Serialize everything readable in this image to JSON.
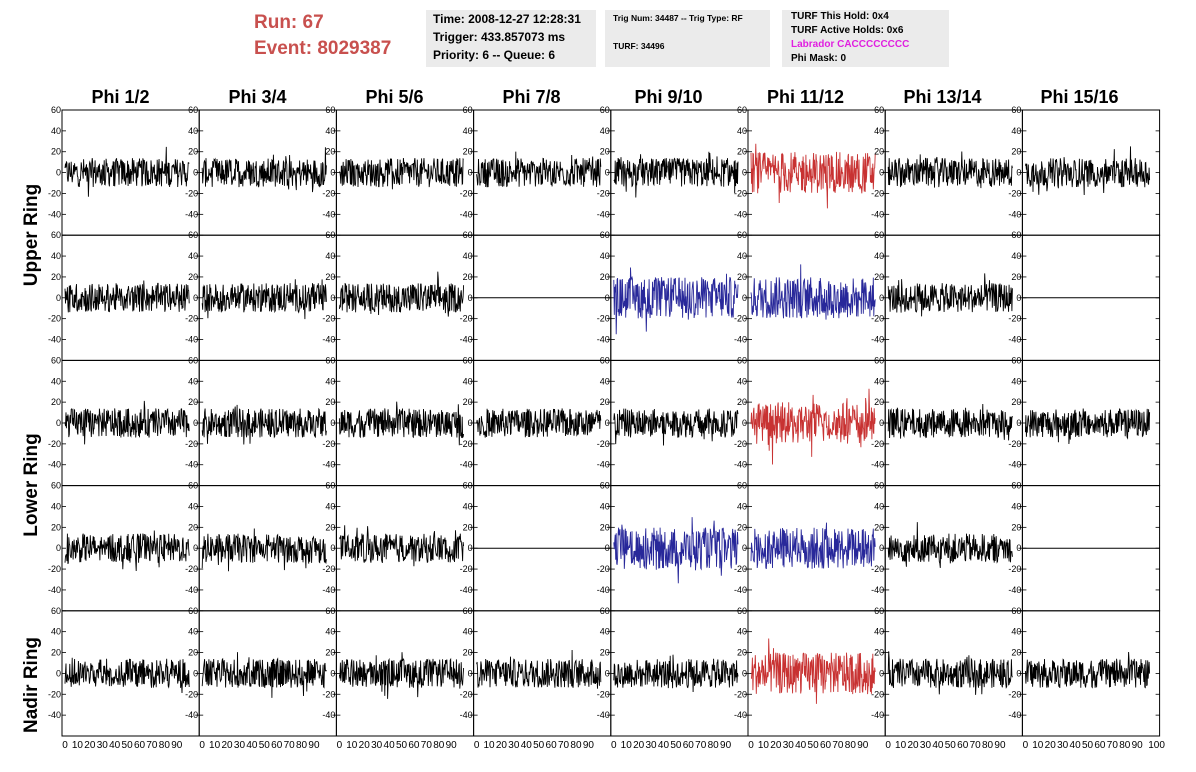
{
  "header": {
    "run": "Run:    67",
    "event": "Event: 8029387"
  },
  "info_time": {
    "time": "Time: 2008-12-27 12:28:31",
    "trigger": "Trigger: 433.857073 ms",
    "priority": "Priority: 6 -- Queue: 6"
  },
  "info_trig": {
    "trig": "Trig Num: 34487 -- Trig Type: RF",
    "turf": "TURF: 34496"
  },
  "info_turf": {
    "this_hold": "TURF This Hold: 0x4",
    "active_holds": "TURF Active Holds: 0x6",
    "labrador": "Labrador CACCCCCCCC",
    "phi_mask": "Phi Mask: 0"
  },
  "columns": [
    "Phi 1/2",
    "Phi 3/4",
    "Phi 5/6",
    "Phi 7/8",
    "Phi 9/10",
    "Phi 11/12",
    "Phi 13/14",
    "Phi 15/16"
  ],
  "rings": [
    "Upper Ring",
    "Lower Ring",
    "Nadir Ring"
  ],
  "colors": {
    "normal": "#000000",
    "hold": "#c83232",
    "active": "#28289a",
    "labrador": "#e020e0"
  },
  "chart_data": {
    "type": "line",
    "x_range": [
      0,
      100
    ],
    "y_range": [
      -60,
      60
    ],
    "y_ticks": [
      -40,
      -20,
      0,
      20,
      40,
      60
    ],
    "x_ticks": [
      0,
      10,
      20,
      30,
      40,
      50,
      60,
      70,
      80,
      90
    ],
    "x_end_label": "100",
    "rows": 5,
    "cols": 8,
    "panels": [
      [
        "normal",
        "normal",
        "normal",
        "normal",
        "normal",
        "hold",
        "normal",
        "normal"
      ],
      [
        "normal",
        "normal",
        "normal",
        "flat",
        "active",
        "active",
        "normal",
        "flat"
      ],
      [
        "normal",
        "normal",
        "normal",
        "normal",
        "normal",
        "hold",
        "normal",
        "normal"
      ],
      [
        "normal",
        "normal",
        "normal",
        "flat",
        "active",
        "active",
        "normal",
        "flat"
      ],
      [
        "normal",
        "normal",
        "normal",
        "normal",
        "normal",
        "hold",
        "normal",
        "normal"
      ]
    ]
  }
}
